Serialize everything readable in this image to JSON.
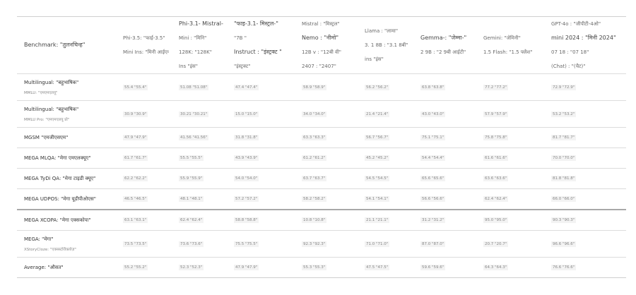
{
  "columns": [
    {
      "name": "benchmark",
      "lines": [
        "Benchmark: \"तुलनचिन्ह\""
      ]
    },
    {
      "name": "phi-3-5-mini",
      "lines": [
        "Phi-3.5: \"फाई-3.5\"",
        "Mini Ins: \"मिनी आईएन\""
      ]
    },
    {
      "name": "phi-3-1-mistral",
      "lines": [
        "Phi-3.1- Mistral-",
        "Mini : \"मिनि\"",
        "128K: \"128K\"",
        "Ins \"इंस\""
      ]
    },
    {
      "name": "mistral-instruct",
      "lines": [
        "\"फाइ-3.1- मिस्ट्रल-\"",
        "\"7B \"",
        "Instruct : \"इंस्ट्रक्ट \"",
        "\"इंस्ट्रक्ट\""
      ]
    },
    {
      "name": "mistral-nemo",
      "lines": [
        "Mistral : \"मिस्ट्रल\"",
        "Nemo : \"नीमो\"",
        "12B v : \"12बी वी\"",
        "2407 : \"2407\""
      ]
    },
    {
      "name": "llama",
      "lines": [
        "Llama : \"लामा\"",
        "3. 1 8B : \"3.1 8बी\"",
        "ins \"इंस\""
      ]
    },
    {
      "name": "gemma",
      "lines": [
        "Gemma-: \"जेम्मा-\"",
        "2 9B : \"2 9बी आईटी\""
      ]
    },
    {
      "name": "gemini-flash",
      "lines": [
        "Gemini: \"जेमिनी\"",
        "1.5 Flash: \"1.5 फ्लैश\""
      ]
    },
    {
      "name": "gpt-4o-mini",
      "lines": [
        "GPT-4o : \"जीपीटी-4ओ\"",
        "mini 2024 : \"मिनी 2024\"",
        "07 18 : \"07 18\"",
        "(Chat) : \"(चैट)\""
      ]
    }
  ],
  "rows": [
    {
      "label": "Multilingual: \"बहुभाषिक\"",
      "sub": "MMLU: \"एमएमएलयू\"",
      "values": [
        "55.4 \"55.4\"",
        "51.08 \"51.08\"",
        "47.4 \"47.4\"",
        "58.9 \"58.9\"",
        "56.2 \"56.2\"",
        "63.8 \"63.8\"",
        "77.2 \"77.2\"",
        "72.9 \"72.9\""
      ]
    },
    {
      "label": "Multilingual: \"बहुभाषिक\"",
      "sub": "MMLU Pro: \"एमएमएलयू प्रो\"",
      "values": [
        "30.9 \"30.9\"",
        "30.21 \"30.21\"",
        "15.0 \"15.0\"",
        "34.0 \"34.0\"",
        "21.4 \"21.4\"",
        "43.0 \"43.0\"",
        "57.9 \"57.9\"",
        "53.2 \"53.2\""
      ]
    },
    {
      "label": "MGSM \"एमजीएसएम\"",
      "sub": "",
      "values": [
        "47.9 \"47.9\"",
        "41.56 \"41.56\"",
        "31.8 \"31.8\"",
        "63.3 \"63.3\"",
        "56.7 \"56.7\"",
        "75.1 \"75.1\"",
        "75.8 \"75.8\"",
        "81.7 \"81.7\""
      ]
    },
    {
      "label": "MEGA MLQA: \"मेगा एमएलक्यूए\"",
      "sub": "",
      "values": [
        "61.7 \"61.7\"",
        "55.5 \"55.5\"",
        "43.9 \"43.9\"",
        "61.2 \"61.2\"",
        "45.2 \"45.2\"",
        "54.4 \"54.4\"",
        "61.6 \"61.6\"",
        "70.0 \"70.0\""
      ]
    },
    {
      "label": "MEGA TyDi QA: \"मेगा टाइडी क्यूए\"",
      "sub": "",
      "values": [
        "62.2 \"62.2\"",
        "55.9 \"55.9\"",
        "54.0 \"54.0\"",
        "63.7 \"63.7\"",
        "54.5 \"54.5\"",
        "65.6 \"65.6\"",
        "63.6 \"63.6\"",
        "81.8 \"81.8\""
      ]
    },
    {
      "label": "MEGA UDPOS: \"मेगा यूडीपीओएस\"",
      "sub": "",
      "values": [
        "46.5 \"46.5\"",
        "48.1 \"48.1\"",
        "57.2 \"57.2\"",
        "58.2 \"58.2\"",
        "54.1 \"54.1\"",
        "56.6 \"56.6\"",
        "62.4 \"62.4\"",
        "66.0 \"66.0\""
      ]
    },
    {
      "label": "MEGA XCOPA: \"मेगा एक्सकोपा\"",
      "sub": "",
      "values": [
        "63.1 \"63.1\"",
        "62.4 \"62.4\"",
        "58.8 \"58.8\"",
        "10.8 \"10.8\"",
        "21.1 \"21.1\"",
        "31.2 \"31.2\"",
        "95.0 \"95.0\"",
        "90.3 \"90.3\""
      ]
    },
    {
      "label": "MEGA: \"मेगा\"",
      "sub": "XStoryCloze: \"एक्सस्टोरीक्लोज़\"",
      "values": [
        "73.5 \"73.5\"",
        "73.6 \"73.6\"",
        "75.5 \"75.5\"",
        "92.3 \"92.3\"",
        "71.0 \"71.0\"",
        "87.0 \"87.0\"",
        "20.7 \"20.7\"",
        "96.6 \"96.6\""
      ]
    },
    {
      "label": "Average: \"औसत\"",
      "sub": "",
      "values": [
        "55.2 \"55.2\"",
        "52.3 \"52.3\"",
        "47.9 \"47.9\"",
        "55.3 \"55.3\"",
        "47.5 \"47.5\"",
        "59.6 \"59.6\"",
        "64.3 \"64.3\"",
        "76.6 \"76.6\""
      ]
    }
  ]
}
